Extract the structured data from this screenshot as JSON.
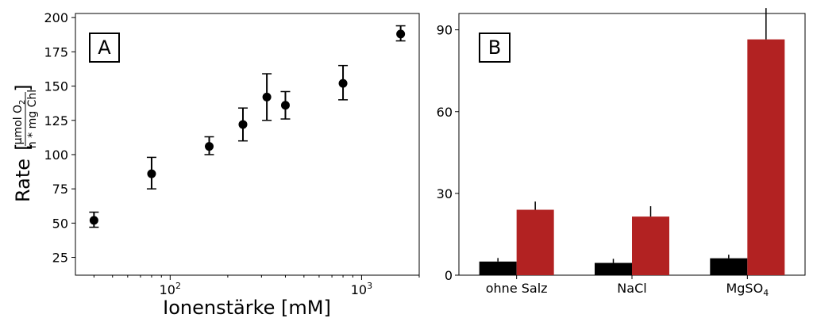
{
  "chart_data": [
    {
      "type": "scatter",
      "panel_label": "A",
      "xlabel": "Ionenstärke [mM]",
      "ylabel_prefix": "Rate",
      "ylabel_unit_numerator_parts": [
        "µmol O",
        "2"
      ],
      "ylabel_unit_denominator": "h * mg Chl",
      "x_scale": "log",
      "xlim": [
        32,
        2000
      ],
      "ylim": [
        12,
        203
      ],
      "x_major_ticks": [
        {
          "value": 100,
          "base": "10",
          "exp": "2"
        },
        {
          "value": 1000,
          "base": "10",
          "exp": "3"
        }
      ],
      "y_ticks": [
        {
          "value": 25,
          "label": "25"
        },
        {
          "value": 50,
          "label": "50"
        },
        {
          "value": 75,
          "label": "75"
        },
        {
          "value": 100,
          "label": "100"
        },
        {
          "value": 125,
          "label": "125"
        },
        {
          "value": 150,
          "label": "150"
        },
        {
          "value": 175,
          "label": "175"
        },
        {
          "value": 200,
          "label": "200"
        }
      ],
      "grid": false,
      "marker_color": "#000000",
      "points": [
        {
          "x": 40,
          "y": 52,
          "err_low": 5,
          "err_high": 6
        },
        {
          "x": 80,
          "y": 86,
          "err_low": 11,
          "err_high": 12
        },
        {
          "x": 160,
          "y": 106,
          "err_low": 6,
          "err_high": 7
        },
        {
          "x": 240,
          "y": 122,
          "err_low": 12,
          "err_high": 12
        },
        {
          "x": 320,
          "y": 142,
          "err_low": 17,
          "err_high": 17
        },
        {
          "x": 400,
          "y": 136,
          "err_low": 10,
          "err_high": 10
        },
        {
          "x": 800,
          "y": 152,
          "err_low": 12,
          "err_high": 13
        },
        {
          "x": 1600,
          "y": 188,
          "err_low": 5,
          "err_high": 6
        }
      ]
    },
    {
      "type": "bar",
      "panel_label": "B",
      "categories": [
        "ohne Salz",
        "NaCl",
        "MgSO|4"
      ],
      "category_labels": [
        {
          "text": "ohne Salz",
          "sub": ""
        },
        {
          "text": "NaCl",
          "sub": ""
        },
        {
          "text": "MgSO",
          "sub": "4"
        }
      ],
      "ylim": [
        0,
        96
      ],
      "y_ticks": [
        {
          "value": 0,
          "label": "0"
        },
        {
          "value": 30,
          "label": "30"
        },
        {
          "value": 60,
          "label": "60"
        },
        {
          "value": 90,
          "label": "90"
        }
      ],
      "grid": false,
      "series": [
        {
          "color": "#000000",
          "values": [
            5,
            4.5,
            6.2
          ],
          "errors": [
            1.3,
            1.5,
            1.3
          ]
        },
        {
          "color": "#b22222",
          "values": [
            24,
            21.5,
            86.5
          ],
          "errors": [
            3,
            3.8,
            11.5
          ]
        }
      ]
    }
  ]
}
